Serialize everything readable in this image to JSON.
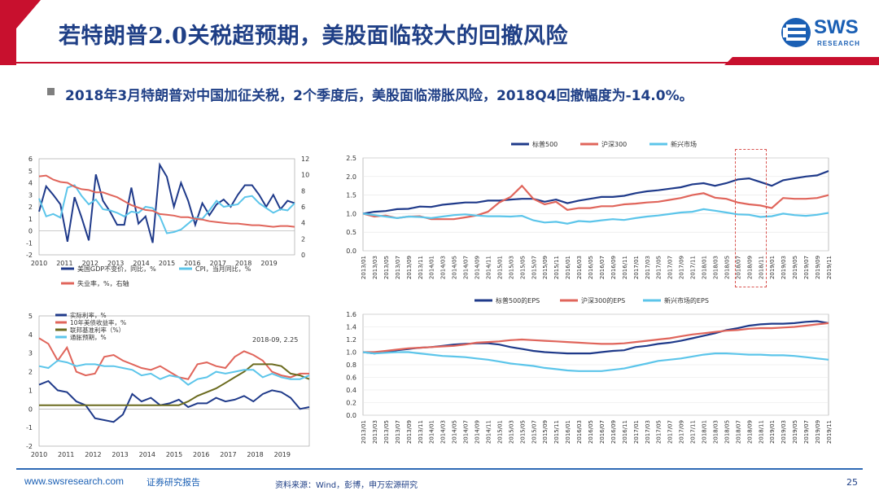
{
  "page": {
    "title": "若特朗普2.0关税超预期，美股面临较大的回撤风险",
    "subtitle": "2018年3月特朗普对中国加征关税，2个季度后，美股面临滞胀风险，2018Q4回撤幅度为-14.0%。",
    "logo_text": "SWS",
    "logo_sub": "RESEARCH",
    "footer_url": "www.swsresearch.com",
    "footer_report": "证券研究报告",
    "footer_source": "资料来源：Wind，彭博，申万宏源研究",
    "page_number": "25"
  },
  "colors": {
    "navy": "#1f3a8a",
    "red": "#e0655b",
    "light_blue": "#5cc5ea",
    "olive": "#6b6b1f",
    "title_red": "#c8102e"
  },
  "chart_data": [
    {
      "id": "macro",
      "type": "line",
      "x_ticks": [
        "2010",
        "2011",
        "2012",
        "2013",
        "2014",
        "2015",
        "2016",
        "2017",
        "2018",
        "2019"
      ],
      "ylim_left": [
        -2,
        6
      ],
      "ylim_right": [
        0,
        12
      ],
      "left_ticks": [
        "6",
        "5",
        "4",
        "3",
        "2",
        "1",
        "0",
        "-1",
        "-2"
      ],
      "right_ticks": [
        "12",
        "10",
        "8",
        "6",
        "4",
        "2",
        "0"
      ],
      "series": [
        {
          "name": "美国GDP不变价，同比，%",
          "axis": "left",
          "color": "#1f3a8a",
          "values": [
            1.6,
            3.7,
            3.0,
            2.2,
            -0.9,
            2.8,
            1.1,
            -0.8,
            4.7,
            2.5,
            1.6,
            0.5,
            0.5,
            3.6,
            0.6,
            1.2,
            -1.0,
            5.5,
            4.5,
            2.0,
            4.0,
            2.5,
            0.5,
            2.3,
            1.3,
            2.2,
            2.6,
            2.0,
            3.0,
            3.8,
            3.8,
            3.0,
            2.0,
            3.0,
            1.8,
            2.5,
            2.3
          ]
        },
        {
          "name": "CPI，当月同比，%",
          "axis": "left",
          "color": "#5cc5ea",
          "values": [
            2.7,
            1.2,
            1.4,
            1.1,
            3.6,
            3.8,
            2.9,
            2.2,
            2.6,
            1.8,
            1.7,
            1.5,
            1.2,
            1.6,
            1.5,
            2.0,
            1.9,
            1.2,
            -0.2,
            -0.1,
            0.1,
            0.6,
            1.1,
            1.0,
            1.7,
            2.5,
            2.0,
            2.1,
            2.2,
            2.8,
            2.9,
            2.3,
            1.9,
            1.5,
            1.8,
            1.7,
            2.3
          ]
        },
        {
          "name": "失业率，%，右轴",
          "axis": "right",
          "color": "#e0655b",
          "values": [
            9.8,
            9.9,
            9.4,
            9.1,
            9.0,
            8.5,
            8.2,
            8.1,
            7.8,
            7.8,
            7.5,
            7.2,
            6.7,
            6.2,
            5.9,
            5.6,
            5.5,
            5.1,
            5.0,
            4.9,
            4.7,
            4.7,
            4.5,
            4.4,
            4.2,
            4.1,
            4.0,
            3.9,
            3.9,
            3.8,
            3.7,
            3.7,
            3.6,
            3.5,
            3.6,
            3.6,
            3.5
          ]
        }
      ]
    },
    {
      "id": "indices",
      "type": "line",
      "x_ticks": [
        "2013/01",
        "2013/03",
        "2013/05",
        "2013/07",
        "2013/09",
        "2013/11",
        "2014/01",
        "2014/03",
        "2014/05",
        "2014/07",
        "2014/09",
        "2014/11",
        "2015/01",
        "2015/03",
        "2015/05",
        "2015/07",
        "2015/09",
        "2015/11",
        "2016/01",
        "2016/03",
        "2016/05",
        "2016/07",
        "2016/09",
        "2016/11",
        "2017/01",
        "2017/03",
        "2017/05",
        "2017/07",
        "2017/09",
        "2017/11",
        "2018/01",
        "2018/03",
        "2018/05",
        "2018/07",
        "2018/09",
        "2018/11",
        "2019/01",
        "2019/03",
        "2019/05",
        "2019/07",
        "2019/09",
        "2019/11"
      ],
      "x_tick_labels": [
        "2013/01",
        "2013/03",
        "2013/05",
        "2013/07",
        "2013/09",
        "2013/11",
        "2014/01",
        "2014/03",
        "2014/05",
        "2014/07",
        "2014/09",
        "2014/11",
        "2015/01",
        "2015/03",
        "2015/05",
        "2015/07",
        "2015/09",
        "2015/11",
        "2016/01",
        "2016/03",
        "2016/05",
        "2016/07",
        "2016/09",
        "2016/11",
        "2017/01",
        "2017/03",
        "2017/05",
        "2017/07",
        "2017/09",
        "2017/11",
        "2018/01",
        "2018/03",
        "2018/05",
        "2018/07",
        "2018/09",
        "2018/11",
        "2019/01",
        "2019/03",
        "2019/05",
        "2019/07",
        "2019/09",
        "2019/11"
      ],
      "ylim": [
        0.0,
        2.5
      ],
      "y_ticks": [
        "2.5",
        "2.0",
        "1.5",
        "1.0",
        "0.5",
        "0.0"
      ],
      "series": [
        {
          "name": "标普500",
          "color": "#1f3a8a",
          "values": [
            1.0,
            1.05,
            1.07,
            1.12,
            1.13,
            1.19,
            1.18,
            1.24,
            1.27,
            1.3,
            1.3,
            1.35,
            1.35,
            1.38,
            1.4,
            1.4,
            1.32,
            1.38,
            1.28,
            1.35,
            1.4,
            1.45,
            1.45,
            1.48,
            1.55,
            1.6,
            1.63,
            1.67,
            1.71,
            1.79,
            1.82,
            1.75,
            1.82,
            1.92,
            1.95,
            1.85,
            1.75,
            1.9,
            1.95,
            2.0,
            2.03,
            2.15
          ]
        },
        {
          "name": "沪深300",
          "color": "#e0655b",
          "values": [
            1.0,
            0.92,
            0.95,
            0.88,
            0.92,
            0.93,
            0.85,
            0.85,
            0.85,
            0.9,
            0.95,
            1.05,
            1.3,
            1.45,
            1.75,
            1.4,
            1.25,
            1.32,
            1.1,
            1.15,
            1.15,
            1.2,
            1.2,
            1.25,
            1.27,
            1.3,
            1.32,
            1.37,
            1.42,
            1.5,
            1.55,
            1.43,
            1.4,
            1.3,
            1.25,
            1.22,
            1.15,
            1.42,
            1.4,
            1.4,
            1.42,
            1.5
          ]
        },
        {
          "name": "新兴市场",
          "color": "#5cc5ea",
          "values": [
            1.0,
            0.96,
            0.92,
            0.88,
            0.92,
            0.91,
            0.88,
            0.92,
            0.96,
            0.98,
            0.95,
            0.93,
            0.93,
            0.92,
            0.94,
            0.82,
            0.76,
            0.78,
            0.73,
            0.8,
            0.78,
            0.82,
            0.85,
            0.83,
            0.88,
            0.92,
            0.95,
            0.99,
            1.03,
            1.05,
            1.12,
            1.08,
            1.03,
            0.98,
            0.97,
            0.91,
            0.93,
            1.0,
            0.96,
            0.94,
            0.97,
            1.02
          ]
        }
      ]
    },
    {
      "id": "rates",
      "type": "line",
      "x_ticks": [
        "2010",
        "2011",
        "2012",
        "2013",
        "2014",
        "2015",
        "2016",
        "2017",
        "2018",
        "2019"
      ],
      "ylim": [
        -2,
        5
      ],
      "y_ticks": [
        "5",
        "4",
        "3",
        "2",
        "1",
        "0",
        "-1",
        "-2"
      ],
      "annotation": "2018-09, 2.25",
      "series": [
        {
          "name": "实际利率，%",
          "color": "#1f3a8a",
          "values": [
            1.3,
            1.5,
            1.0,
            0.9,
            0.4,
            0.2,
            -0.5,
            -0.6,
            -0.7,
            -0.3,
            0.8,
            0.4,
            0.6,
            0.2,
            0.3,
            0.5,
            0.1,
            0.3,
            0.3,
            0.6,
            0.4,
            0.5,
            0.7,
            0.4,
            0.8,
            1.0,
            0.9,
            0.6,
            0.0,
            0.1
          ]
        },
        {
          "name": "10年美债收益率，%",
          "color": "#e0655b",
          "values": [
            3.8,
            3.5,
            2.6,
            3.3,
            2.0,
            1.8,
            1.9,
            2.8,
            2.9,
            2.6,
            2.4,
            2.2,
            2.1,
            2.3,
            2.0,
            1.7,
            1.6,
            2.4,
            2.5,
            2.3,
            2.2,
            2.8,
            3.1,
            2.9,
            2.6,
            2.0,
            1.8,
            1.7,
            1.9,
            1.9
          ]
        },
        {
          "name": "联邦基准利率（%）",
          "color": "#6b6b1f",
          "values": [
            0.2,
            0.2,
            0.2,
            0.2,
            0.2,
            0.2,
            0.2,
            0.2,
            0.2,
            0.2,
            0.2,
            0.2,
            0.2,
            0.2,
            0.2,
            0.2,
            0.4,
            0.7,
            0.9,
            1.1,
            1.4,
            1.7,
            2.0,
            2.4,
            2.4,
            2.4,
            2.3,
            1.9,
            1.8,
            1.6
          ]
        },
        {
          "name": "通胀预期，%",
          "color": "#5cc5ea",
          "values": [
            2.3,
            2.2,
            2.6,
            2.5,
            2.3,
            2.4,
            2.4,
            2.3,
            2.3,
            2.2,
            2.1,
            1.8,
            1.9,
            1.6,
            1.8,
            1.7,
            1.3,
            1.6,
            1.7,
            2.0,
            1.9,
            2.0,
            2.1,
            2.1,
            1.7,
            1.9,
            1.7,
            1.6,
            1.6,
            1.8
          ]
        }
      ]
    },
    {
      "id": "eps",
      "type": "line",
      "x_ticks": [
        "2013/01",
        "2013/03",
        "2013/05",
        "2013/07",
        "2013/09",
        "2013/11",
        "2014/01",
        "2014/03",
        "2014/05",
        "2014/07",
        "2014/09",
        "2014/11",
        "2015/01",
        "2015/03",
        "2015/05",
        "2015/07",
        "2015/09",
        "2015/11",
        "2016/01",
        "2016/03",
        "2016/05",
        "2016/07",
        "2016/09",
        "2016/11",
        "2017/01",
        "2017/03",
        "2017/05",
        "2017/07",
        "2017/09",
        "2017/11",
        "2018/01",
        "2018/03",
        "2018/05",
        "2018/07",
        "2018/09",
        "2018/11",
        "2019/01",
        "2019/03",
        "2019/05",
        "2019/07",
        "2019/09",
        "2019/11"
      ],
      "x_tick_labels": [
        "2013/01",
        "2013/03",
        "2013/05",
        "2013/07",
        "2013/09",
        "2013/11",
        "2014/01",
        "2014/03",
        "2014/05",
        "2014/07",
        "2014/09",
        "2014/11",
        "2015/01",
        "2015/03",
        "2015/05",
        "2015/07",
        "2015/09",
        "2015/11",
        "2016/01",
        "2016/03",
        "2016/05",
        "2016/07",
        "2016/09",
        "2016/11",
        "2017/01",
        "2017/03",
        "2017/05",
        "2017/07",
        "2017/09",
        "2017/11",
        "2018/01",
        "2018/03",
        "2018/05",
        "2018/07",
        "2018/09",
        "2018/11",
        "2019/01",
        "2019/03",
        "2019/05",
        "2019/07",
        "2019/09",
        "2019/11"
      ],
      "ylim": [
        0.0,
        1.6
      ],
      "y_ticks": [
        "1.6",
        "1.4",
        "1.2",
        "1.0",
        "0.8",
        "0.6",
        "0.4",
        "0.2",
        "0.0"
      ],
      "series": [
        {
          "name": "标普500的EPS",
          "color": "#1f3a8a",
          "values": [
            1.0,
            0.98,
            1.0,
            1.03,
            1.05,
            1.07,
            1.08,
            1.1,
            1.12,
            1.13,
            1.14,
            1.14,
            1.12,
            1.08,
            1.05,
            1.02,
            1.0,
            0.99,
            0.98,
            0.98,
            0.98,
            1.0,
            1.02,
            1.03,
            1.08,
            1.1,
            1.13,
            1.15,
            1.18,
            1.22,
            1.26,
            1.3,
            1.35,
            1.38,
            1.42,
            1.44,
            1.45,
            1.45,
            1.46,
            1.48,
            1.49,
            1.46
          ]
        },
        {
          "name": "沪深300的EPS",
          "color": "#e0655b",
          "values": [
            1.0,
            1.0,
            1.02,
            1.04,
            1.06,
            1.07,
            1.08,
            1.09,
            1.1,
            1.12,
            1.15,
            1.16,
            1.17,
            1.19,
            1.2,
            1.19,
            1.18,
            1.17,
            1.16,
            1.15,
            1.14,
            1.13,
            1.13,
            1.14,
            1.16,
            1.18,
            1.2,
            1.22,
            1.25,
            1.28,
            1.3,
            1.32,
            1.34,
            1.35,
            1.37,
            1.38,
            1.38,
            1.39,
            1.4,
            1.42,
            1.44,
            1.46
          ]
        },
        {
          "name": "新兴市场的EPS",
          "color": "#5cc5ea",
          "values": [
            1.0,
            0.98,
            0.99,
            1.0,
            1.0,
            0.98,
            0.96,
            0.94,
            0.93,
            0.92,
            0.9,
            0.88,
            0.85,
            0.82,
            0.8,
            0.78,
            0.75,
            0.73,
            0.71,
            0.7,
            0.7,
            0.7,
            0.72,
            0.74,
            0.78,
            0.82,
            0.86,
            0.88,
            0.9,
            0.93,
            0.96,
            0.98,
            0.98,
            0.97,
            0.96,
            0.96,
            0.95,
            0.95,
            0.94,
            0.92,
            0.9,
            0.88
          ]
        }
      ]
    }
  ]
}
